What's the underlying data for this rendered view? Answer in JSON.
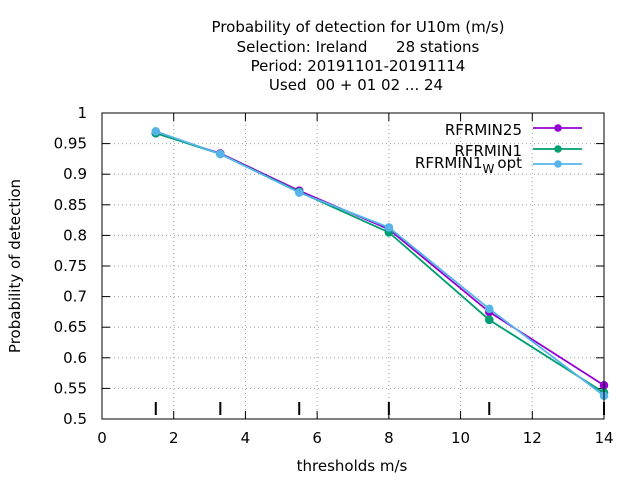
{
  "chart_data": {
    "type": "line",
    "title_lines": [
      "Probability of detection  for U10m (m/s)",
      "Selection: Ireland      28 stations",
      "Period: 20191101-20191114",
      "Used  00 + 01 02 ... 24"
    ],
    "xlabel": "thresholds m/s",
    "ylabel": "Probability of detection",
    "xlim": [
      0,
      14
    ],
    "ylim": [
      0.5,
      1.0
    ],
    "x_ticks": [
      "0",
      "2",
      "4",
      "6",
      "8",
      "10",
      "12",
      "14"
    ],
    "y_ticks": [
      "0.5",
      "0.55",
      "0.6",
      "0.65",
      "0.7",
      "0.75",
      "0.8",
      "0.85",
      "0.9",
      "0.95",
      "1"
    ],
    "grid": true,
    "legend_position": "top-right",
    "x": [
      1.5,
      3.3,
      5.5,
      8.0,
      10.8,
      14.0
    ],
    "series": [
      {
        "name": "RFRMIN25",
        "color": "#9400d3",
        "values": [
          0.967,
          0.934,
          0.873,
          0.81,
          0.675,
          0.555
        ]
      },
      {
        "name": "RFRMIN1",
        "color": "#009e73",
        "values": [
          0.967,
          0.933,
          0.871,
          0.805,
          0.662,
          0.543
        ]
      },
      {
        "name_main": "RFRMIN1",
        "name_sub": "W",
        "name_suffix": "opt",
        "color": "#56b4e9",
        "values": [
          0.97,
          0.933,
          0.87,
          0.813,
          0.68,
          0.538
        ]
      }
    ]
  }
}
